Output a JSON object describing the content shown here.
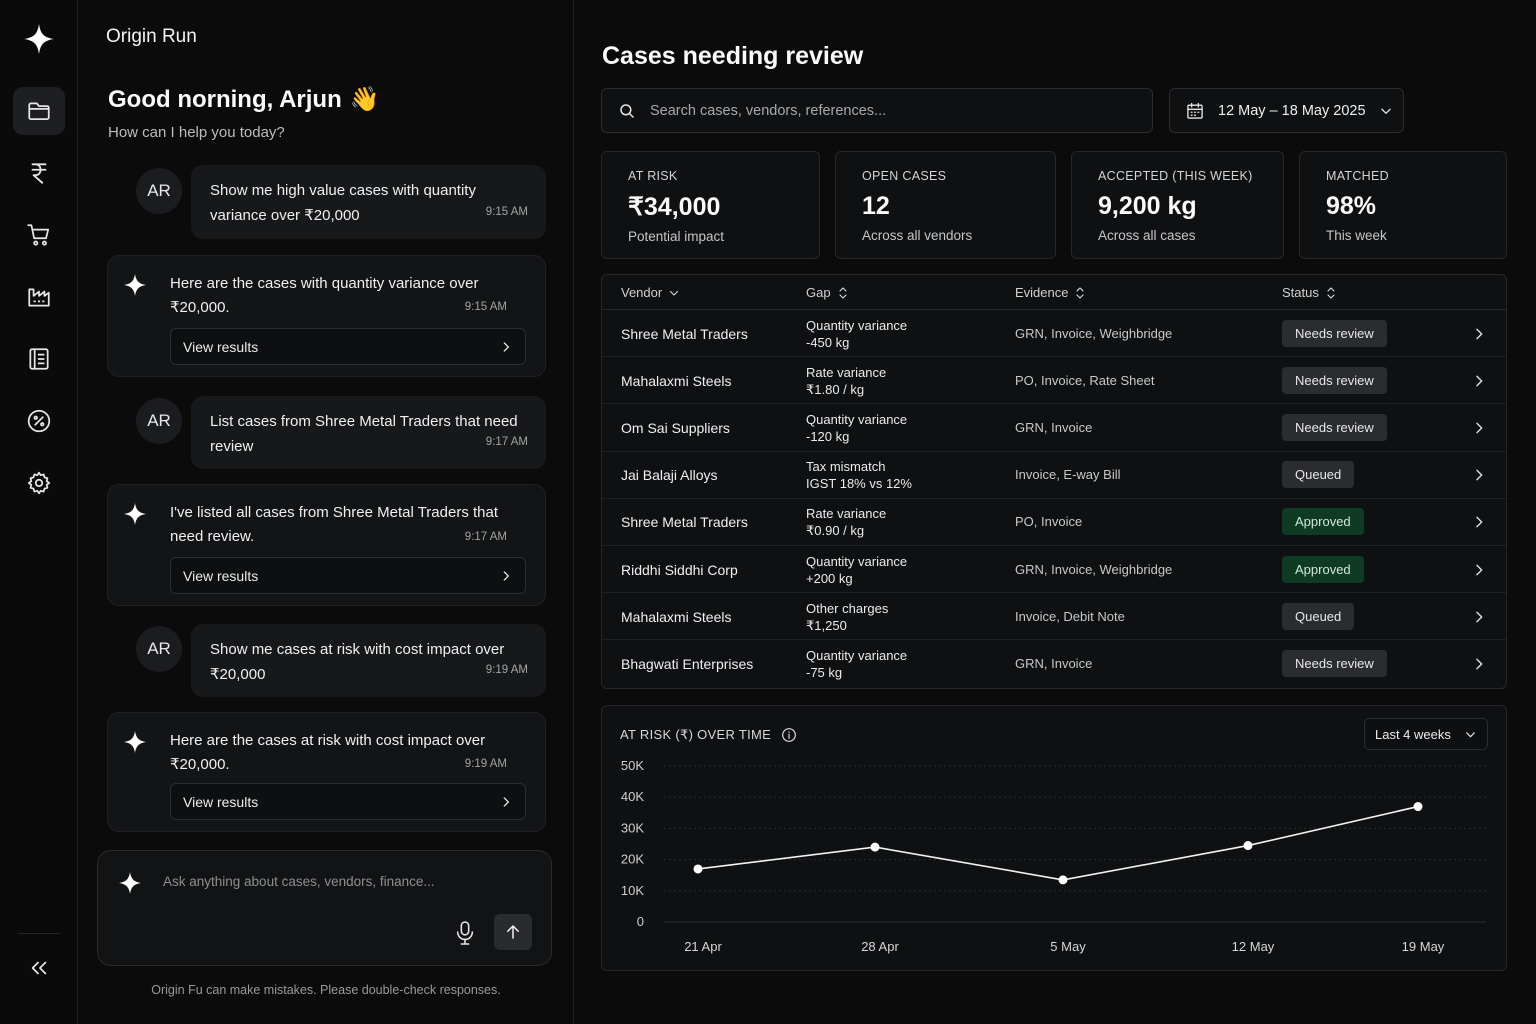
{
  "app": {
    "name": "Origin Run"
  },
  "colors": {
    "background": "#0b0b0c",
    "approved": "#0f3b25",
    "badge": "#2a2c30"
  },
  "rail": {
    "items": [
      {
        "name": "folder-icon",
        "active": true
      },
      {
        "name": "rupee-icon",
        "active": false
      },
      {
        "name": "cart-icon",
        "active": false
      },
      {
        "name": "factory-icon",
        "active": false
      },
      {
        "name": "ledger-icon",
        "active": false
      },
      {
        "name": "percent-icon",
        "active": false
      },
      {
        "name": "gear-icon",
        "active": false
      }
    ],
    "collapse_icon": "double-chevron-left-icon"
  },
  "chat": {
    "greeting": "Good norning, Arjun",
    "greeting_emoji": "👋",
    "subtitle": "How can I help you today?",
    "messages": [
      {
        "role": "user",
        "avatar": "AR",
        "text": "Show me high value cases with quantity variance over ₹20,000",
        "time": "9:15 AM"
      },
      {
        "role": "assistant",
        "text": "Here are the cases with quantity variance over ₹20,000.",
        "time": "9:15 AM",
        "button": "View results"
      },
      {
        "role": "user",
        "avatar": "AR",
        "text": "List cases from Shree Metal Traders that need review",
        "time": "9:17 AM"
      },
      {
        "role": "assistant",
        "text": "I've listed all cases from Shree Metal Traders that need review.",
        "time": "9:17 AM",
        "button": "View results"
      },
      {
        "role": "user",
        "avatar": "AR",
        "text": "Show me cases at risk with cost impact over ₹20,000",
        "time": "9:19 AM"
      },
      {
        "role": "assistant",
        "text": "Here are the cases at risk with cost impact over ₹20,000.",
        "time": "9:19 AM",
        "button": "View results"
      }
    ],
    "composer_placeholder": "Ask anything about cases, vendors, finance...",
    "disclaimer": "Origin Fu can make mistakes. Please double-check responses."
  },
  "main": {
    "title": "Cases needing review",
    "search_placeholder": "Search cases, vendors, references...",
    "date_range": "12 May – 18 May 2025",
    "stats": [
      {
        "label": "AT RISK",
        "value": "₹34,000",
        "sub": "Potential impact"
      },
      {
        "label": "OPEN CASES",
        "value": "12",
        "sub": "Across all vendors"
      },
      {
        "label": "ACCEPTED (THIS WEEK)",
        "value": "9,200 kg",
        "sub": "Across all cases"
      },
      {
        "label": "MATCHED",
        "value": "98%",
        "sub": "This week"
      }
    ],
    "table": {
      "columns": [
        "Vendor",
        "Gap",
        "Evidence",
        "Status"
      ],
      "rows": [
        {
          "vendor": "Shree Metal Traders",
          "gap_type": "Quantity variance",
          "gap_value": "-450 kg",
          "evidence": "GRN, Invoice, Weighbridge",
          "status": "Needs review",
          "kind": "review"
        },
        {
          "vendor": "Mahalaxmi Steels",
          "gap_type": "Rate variance",
          "gap_value": "₹1.80 / kg",
          "evidence": "PO, Invoice, Rate Sheet",
          "status": "Needs review",
          "kind": "review"
        },
        {
          "vendor": "Om Sai Suppliers",
          "gap_type": "Quantity variance",
          "gap_value": "-120 kg",
          "evidence": "GRN, Invoice",
          "status": "Needs review",
          "kind": "review"
        },
        {
          "vendor": "Jai Balaji Alloys",
          "gap_type": "Tax mismatch",
          "gap_value": "IGST 18% vs 12%",
          "evidence": "Invoice, E-way Bill",
          "status": "Queued",
          "kind": "queued"
        },
        {
          "vendor": "Shree Metal Traders",
          "gap_type": "Rate variance",
          "gap_value": "₹0.90 / kg",
          "evidence": "PO, Invoice",
          "status": "Approved",
          "kind": "approved"
        },
        {
          "vendor": "Riddhi Siddhi Corp",
          "gap_type": "Quantity variance",
          "gap_value": "+200 kg",
          "evidence": "GRN, Invoice, Weighbridge",
          "status": "Approved",
          "kind": "approved"
        },
        {
          "vendor": "Mahalaxmi Steels",
          "gap_type": "Other charges",
          "gap_value": "₹1,250",
          "evidence": "Invoice, Debit Note",
          "status": "Queued",
          "kind": "queued"
        },
        {
          "vendor": "Bhagwati Enterprises",
          "gap_type": "Quantity variance",
          "gap_value": "-75 kg",
          "evidence": "GRN, Invoice",
          "status": "Needs review",
          "kind": "review"
        }
      ]
    },
    "chart_title": "AT RISK (₹) OVER TIME",
    "chart_range": "Last 4 weeks"
  },
  "chart_data": {
    "type": "line",
    "title": "AT RISK (₹) OVER TIME",
    "x": [
      "21 Apr",
      "28 Apr",
      "5 May",
      "12 May",
      "19 May"
    ],
    "series": [
      {
        "values": [
          17000,
          24000,
          13500,
          24500,
          37000
        ]
      }
    ],
    "ylim": [
      0,
      50000
    ],
    "yticks": [
      "0",
      "10K",
      "20K",
      "30K",
      "40K",
      "50K"
    ],
    "grid": true
  }
}
